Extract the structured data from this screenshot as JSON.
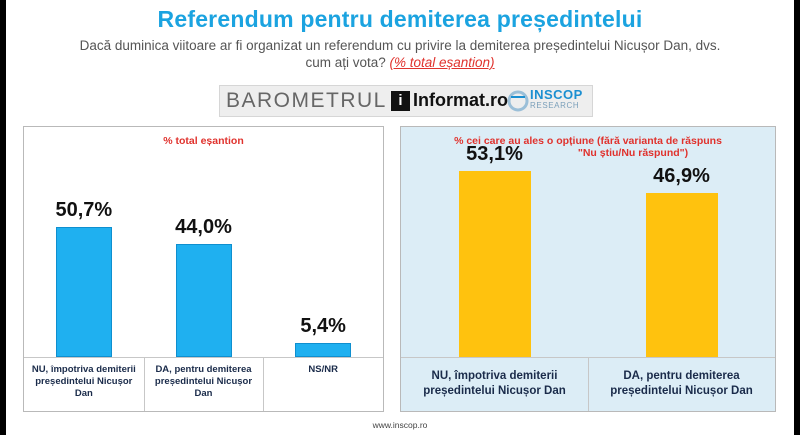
{
  "header": {
    "title": "Referendum pentru demiterea președintelui",
    "subtitle_line1": "Dacă duminica viitoare ar fi organizat un referendum cu privire la demiterea președintelui Nicușor Dan, dvs.",
    "subtitle_line2": "cum ați vota?",
    "subtitle_note": "(% total eșantion)"
  },
  "banner": {
    "barometrul": "BAROMETRUL",
    "informat": "Informat.ro",
    "inscop": "INSCOP",
    "inscop_sub": "RESEARCH"
  },
  "footer": {
    "url": "www.inscop.ro"
  },
  "colors": {
    "left_bar": "#1fb0f0",
    "right_bar": "#ffc20e",
    "title": "#1ba3e0",
    "caption": "#e0322d"
  },
  "chart_data": [
    {
      "type": "bar",
      "title": "% total eșantion",
      "categories": [
        "NU, împotriva demiterii președintelui Nicușor Dan",
        "DA, pentru demiterea președintelui Nicușor Dan",
        "NS/NR"
      ],
      "values": [
        50.7,
        44.0,
        5.4
      ],
      "labels": [
        "50,7%",
        "44,0%",
        "5,4%"
      ],
      "ylim": [
        0,
        60
      ],
      "grid": false
    },
    {
      "type": "bar",
      "title_line1": "% cei care au ales o opțiune (fără varianta de răspuns",
      "title_line2": "\"Nu știu/Nu răspund\")",
      "categories": [
        "NU, împotriva demiterii președintelui Nicușor Dan",
        "DA, pentru demiterea președintelui Nicușor Dan"
      ],
      "values": [
        53.1,
        46.9
      ],
      "labels": [
        "53,1%",
        "46,9%"
      ],
      "ylim": [
        0,
        60
      ],
      "grid": false
    }
  ]
}
